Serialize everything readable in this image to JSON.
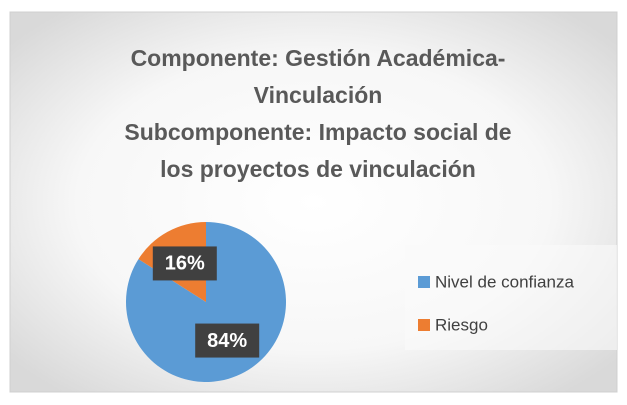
{
  "chart_data": {
    "type": "pie",
    "title": [
      "Componente: Gestión Académica-",
      "Vinculación",
      "Subcomponente: Impacto social de",
      "los proyectos de vinculación"
    ],
    "categories": [
      "Nivel de confianza",
      "Riesgo"
    ],
    "values": [
      84,
      16
    ],
    "value_labels": [
      "84%",
      "16%"
    ],
    "colors": [
      "#5b9bd5",
      "#ed7d31"
    ],
    "legend": "right"
  }
}
